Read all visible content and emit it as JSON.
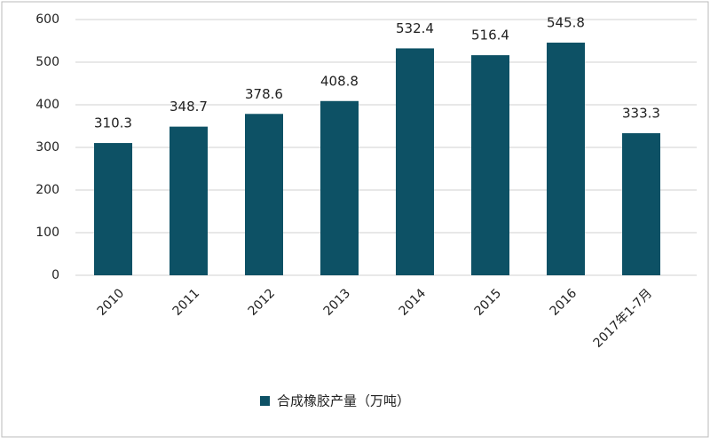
{
  "chart_data": {
    "type": "bar",
    "categories": [
      "2010",
      "2011",
      "2012",
      "2013",
      "2014",
      "2015",
      "2016",
      "2017年1-7月"
    ],
    "series": [
      {
        "name": "合成橡胶产量（万吨）",
        "color": "#0d5165",
        "values": [
          310.3,
          348.7,
          378.6,
          408.8,
          532.4,
          516.4,
          545.8,
          333.3
        ]
      }
    ],
    "ylim": [
      0,
      600
    ],
    "yticks": [
      0,
      100,
      200,
      300,
      400,
      500,
      600
    ],
    "grid": true,
    "legend": "bottom"
  }
}
